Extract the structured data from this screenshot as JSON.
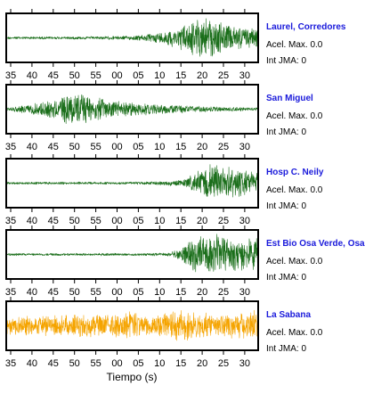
{
  "chart_data": {
    "type": "line",
    "xlabel": "Tiempo (s)",
    "x_tick_labels": [
      "35",
      "40",
      "45",
      "50",
      "55",
      "00",
      "05",
      "10",
      "15",
      "20",
      "25",
      "30"
    ],
    "grid": false,
    "panels": [
      {
        "name": "Laurel, Corredores",
        "acel_label": "Acel. Max. 0.0",
        "jma_label": "Int JMA: 0",
        "color": "#1a6e1a",
        "envelope": [
          [
            0,
            0.06
          ],
          [
            0.35,
            0.07
          ],
          [
            0.5,
            0.1
          ],
          [
            0.58,
            0.2
          ],
          [
            0.63,
            0.35
          ],
          [
            0.68,
            0.5
          ],
          [
            0.72,
            0.75
          ],
          [
            0.77,
            0.95
          ],
          [
            0.82,
            0.95
          ],
          [
            0.86,
            0.7
          ],
          [
            0.92,
            0.55
          ],
          [
            1,
            0.45
          ]
        ]
      },
      {
        "name": "San Miguel",
        "acel_label": "Acel. Max. 0.0",
        "jma_label": "Int JMA: 0",
        "color": "#1a6e1a",
        "envelope": [
          [
            0,
            0.08
          ],
          [
            0.05,
            0.15
          ],
          [
            0.12,
            0.3
          ],
          [
            0.2,
            0.45
          ],
          [
            0.27,
            0.95
          ],
          [
            0.3,
            0.85
          ],
          [
            0.38,
            0.5
          ],
          [
            0.48,
            0.35
          ],
          [
            0.6,
            0.25
          ],
          [
            0.75,
            0.15
          ],
          [
            0.9,
            0.1
          ],
          [
            1,
            0.08
          ]
        ]
      },
      {
        "name": "Hosp C. Neily",
        "acel_label": "Acel. Max. 0.0",
        "jma_label": "Int JMA: 0",
        "color": "#1a6e1a",
        "envelope": [
          [
            0,
            0.06
          ],
          [
            0.5,
            0.06
          ],
          [
            0.62,
            0.1
          ],
          [
            0.7,
            0.15
          ],
          [
            0.74,
            0.4
          ],
          [
            0.78,
            0.7
          ],
          [
            0.82,
            0.95
          ],
          [
            0.88,
            0.8
          ],
          [
            0.94,
            0.65
          ],
          [
            1,
            0.6
          ]
        ]
      },
      {
        "name": "Est Bio Osa Verde, Osa",
        "acel_label": "Acel. Max. 0.0",
        "jma_label": "Int JMA: 0",
        "color": "#1a6e1a",
        "envelope": [
          [
            0,
            0.06
          ],
          [
            0.55,
            0.06
          ],
          [
            0.65,
            0.08
          ],
          [
            0.68,
            0.25
          ],
          [
            0.72,
            0.6
          ],
          [
            0.76,
            0.85
          ],
          [
            0.82,
            0.95
          ],
          [
            0.88,
            0.8
          ],
          [
            0.94,
            0.85
          ],
          [
            1,
            0.7
          ]
        ]
      },
      {
        "name": "La Sabana",
        "acel_label": "Acel. Max. 0.0",
        "jma_label": "Int JMA: 0",
        "color": "#f5a400",
        "envelope": [
          [
            0,
            0.45
          ],
          [
            0.2,
            0.5
          ],
          [
            0.45,
            0.55
          ],
          [
            0.5,
            0.7
          ],
          [
            0.55,
            0.55
          ],
          [
            0.7,
            0.75
          ],
          [
            0.8,
            0.6
          ],
          [
            0.9,
            0.55
          ],
          [
            0.96,
            0.65
          ],
          [
            0.98,
            0.95
          ],
          [
            1,
            0.6
          ]
        ]
      }
    ]
  }
}
